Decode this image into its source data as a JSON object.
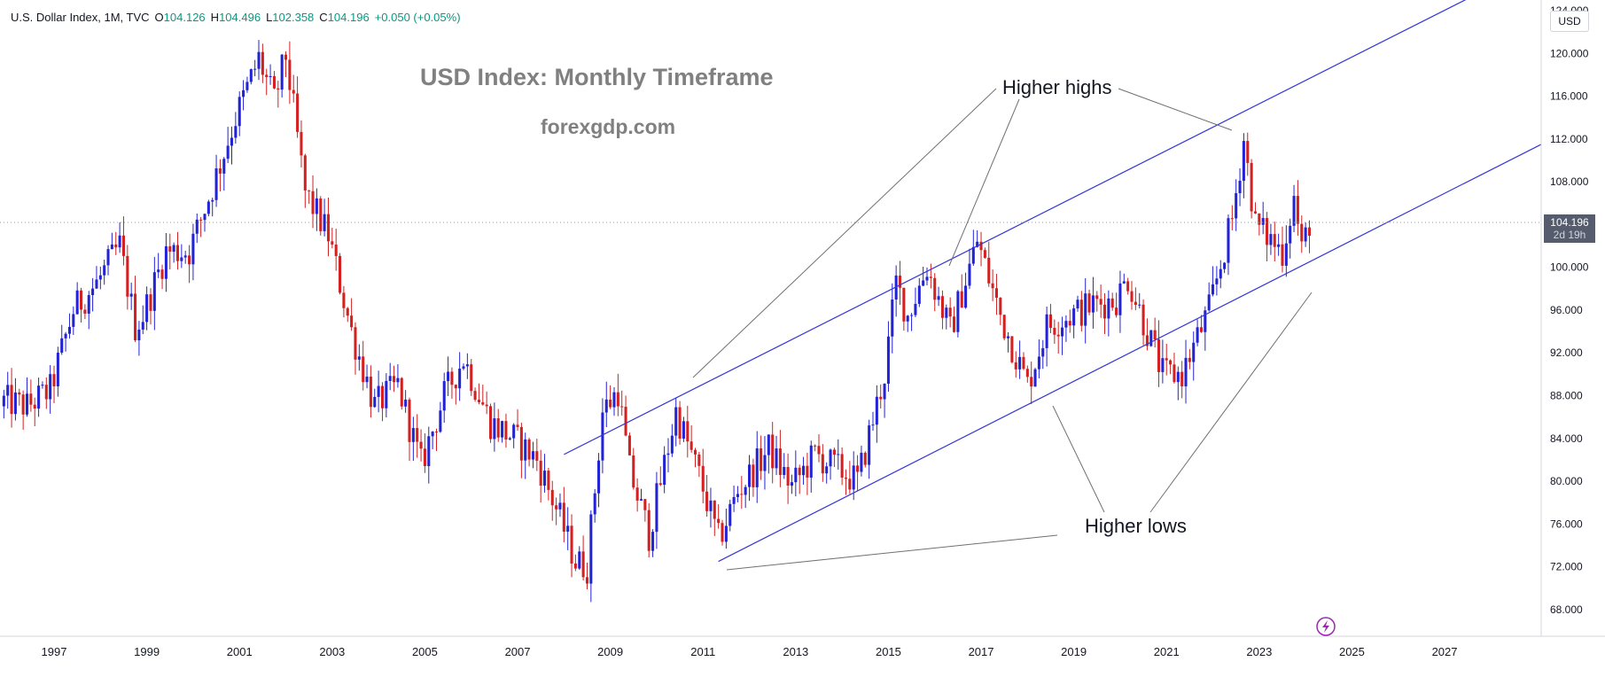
{
  "header": {
    "symbol": "U.S. Dollar Index, 1M, TVC",
    "open_label": "O",
    "open": "104.126",
    "high_label": "H",
    "high": "104.496",
    "low_label": "L",
    "low": "102.358",
    "close_label": "C",
    "close": "104.196",
    "change": "+0.050 (+0.05%)"
  },
  "currency_button": "USD",
  "watermark": {
    "title": "USD Index: Monthly Timeframe",
    "site": "forexgdp.com"
  },
  "annotations": {
    "higher_highs": "Higher highs",
    "higher_lows": "Higher lows"
  },
  "last_price": {
    "value": "104.196",
    "countdown": "2d 19h"
  },
  "colors": {
    "up": "#2323d6",
    "down": "#d32020",
    "channel": "#3636d6",
    "annotation_line": "#707070",
    "background": "#ffffff"
  },
  "chart_data": {
    "type": "candlestick",
    "timeframe": "1M",
    "x_ticks": [
      "1997",
      "1999",
      "2001",
      "2003",
      "2005",
      "2007",
      "2009",
      "2011",
      "2013",
      "2015",
      "2017",
      "2019",
      "2021",
      "2023",
      "2025",
      "2027"
    ],
    "y_ticks": [
      "68.000",
      "72.000",
      "76.000",
      "80.000",
      "84.000",
      "88.000",
      "92.000",
      "96.000",
      "100.000",
      "104.000",
      "108.000",
      "112.000",
      "116.000",
      "120.000",
      "124.000"
    ],
    "ylim": [
      65.5,
      125
    ],
    "xlim": [
      "1995-11",
      "2029-02"
    ],
    "price_path": [
      [
        "1995-12",
        87.5
      ],
      [
        "1996-06",
        87.0
      ],
      [
        "1996-12",
        88.5
      ],
      [
        "1997-06",
        96.0
      ],
      [
        "1997-12",
        98.5
      ],
      [
        "1998-06",
        102.0
      ],
      [
        "1998-10",
        94.5
      ],
      [
        "1998-12",
        95.5
      ],
      [
        "1999-06",
        101.5
      ],
      [
        "1999-12",
        101.5
      ],
      [
        "2000-06",
        107.5
      ],
      [
        "2000-12",
        114.0
      ],
      [
        "2001-06",
        119.5
      ],
      [
        "2001-10",
        115.5
      ],
      [
        "2002-01",
        119.8
      ],
      [
        "2002-06",
        107.0
      ],
      [
        "2002-12",
        103.0
      ],
      [
        "2003-06",
        94.0
      ],
      [
        "2003-12",
        87.0
      ],
      [
        "2004-06",
        89.0
      ],
      [
        "2004-12",
        81.5
      ],
      [
        "2005-06",
        88.0
      ],
      [
        "2005-11",
        91.5
      ],
      [
        "2006-06",
        85.5
      ],
      [
        "2006-12",
        84.0
      ],
      [
        "2007-06",
        82.0
      ],
      [
        "2007-12",
        76.5
      ],
      [
        "2008-04",
        72.5
      ],
      [
        "2008-07",
        72.0
      ],
      [
        "2008-11",
        86.5
      ],
      [
        "2009-03",
        88.5
      ],
      [
        "2009-06",
        81.0
      ],
      [
        "2009-11",
        75.0
      ],
      [
        "2010-06",
        86.5
      ],
      [
        "2010-12",
        80.5
      ],
      [
        "2011-05",
        74.5
      ],
      [
        "2011-10",
        79.0
      ],
      [
        "2012-06",
        83.0
      ],
      [
        "2012-12",
        79.5
      ],
      [
        "2013-06",
        82.5
      ],
      [
        "2014-05",
        80.0
      ],
      [
        "2014-12",
        90.0
      ],
      [
        "2015-03",
        98.5
      ],
      [
        "2015-06",
        95.5
      ],
      [
        "2015-11",
        100.0
      ],
      [
        "2016-05",
        94.0
      ],
      [
        "2016-12",
        102.5
      ],
      [
        "2017-06",
        95.5
      ],
      [
        "2018-01",
        89.0
      ],
      [
        "2018-06",
        94.5
      ],
      [
        "2019-06",
        96.5
      ],
      [
        "2019-12",
        97.0
      ],
      [
        "2020-03",
        99.0
      ],
      [
        "2020-12",
        90.0
      ],
      [
        "2021-05",
        90.0
      ],
      [
        "2021-12",
        96.0
      ],
      [
        "2022-06",
        104.5
      ],
      [
        "2022-09",
        112.0
      ],
      [
        "2022-12",
        104.0
      ],
      [
        "2023-07",
        101.5
      ],
      [
        "2023-10",
        106.5
      ],
      [
        "2023-12",
        101.5
      ],
      [
        "2024-02",
        104.2
      ]
    ],
    "channel_upper": {
      "from": [
        "2008-01",
        82.5
      ],
      "to": [
        "2028-08",
        127.5
      ]
    },
    "channel_lower": {
      "from": [
        "2011-05",
        72.5
      ],
      "to": [
        "2029-02",
        111.5
      ]
    },
    "last_price_line": 104.196,
    "grid": false
  }
}
